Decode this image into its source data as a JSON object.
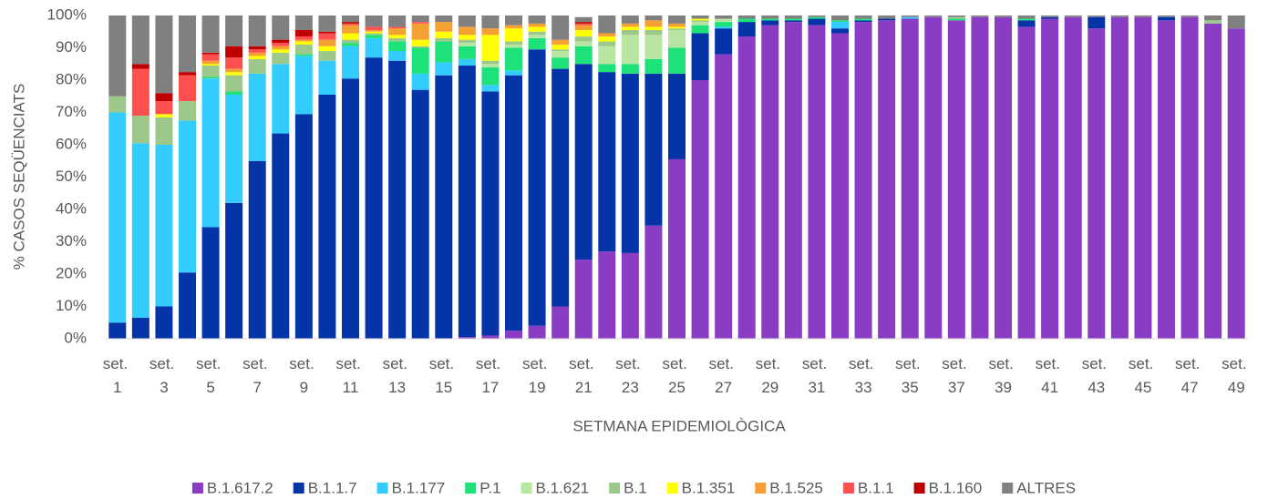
{
  "chart_data": {
    "type": "stacked_bar",
    "x_label": "SETMANA EPIDEMIOLÒGICA",
    "y_label": "% CASOS SEQÜENCIATS",
    "categories": [
      "set. 1",
      null,
      "set. 3",
      null,
      "set. 5",
      null,
      "set. 7",
      null,
      "set. 9",
      null,
      "set. 11",
      null,
      "set. 13",
      null,
      "set. 15",
      null,
      "set. 17",
      null,
      "set. 19",
      null,
      "set. 21",
      null,
      "set. 23",
      null,
      "set. 25",
      null,
      "set. 27",
      null,
      "set. 29",
      null,
      "set. 31",
      null,
      "set. 33",
      null,
      "set. 35",
      null,
      "set. 37",
      null,
      "set. 39",
      null,
      "set. 41",
      null,
      "set. 43",
      null,
      "set. 45",
      null,
      "set. 47",
      null,
      "set. 49"
    ],
    "ylim": [
      0,
      100
    ],
    "yticks": [
      {
        "value": 0,
        "label": "0%"
      },
      {
        "value": 10,
        "label": "10%"
      },
      {
        "value": 20,
        "label": "20%"
      },
      {
        "value": 30,
        "label": "30%"
      },
      {
        "value": 40,
        "label": "40%"
      },
      {
        "value": 50,
        "label": "50%"
      },
      {
        "value": 60,
        "label": "60%"
      },
      {
        "value": 70,
        "label": "70%"
      },
      {
        "value": 80,
        "label": "80%"
      },
      {
        "value": 90,
        "label": "90%"
      },
      {
        "value": 100,
        "label": "100%"
      }
    ],
    "grid": false,
    "legend": "bottom",
    "series": [
      {
        "name": "B.1.617.2",
        "color": "#8a3cc4",
        "values": [
          0,
          0,
          0,
          0,
          0,
          0,
          0,
          0,
          0,
          0,
          0,
          0,
          0,
          0,
          0,
          0.5,
          1,
          2.5,
          4,
          10,
          24.5,
          27,
          26.5,
          35,
          55.5,
          80,
          88,
          93.5,
          97,
          98,
          97,
          94.5,
          98,
          98.5,
          99,
          99.5,
          98.5,
          99.5,
          99.5,
          96.5,
          99,
          99.5,
          96,
          99.5,
          99.5,
          98.5,
          99.5,
          97.5,
          96
        ]
      },
      {
        "name": "B.1.1.7",
        "color": "#0434a8",
        "values": [
          5,
          6.5,
          10,
          20.5,
          34.5,
          42,
          55,
          63.5,
          69.5,
          75.5,
          80.5,
          87,
          86,
          77,
          81.5,
          84,
          75.5,
          79,
          85.5,
          73.5,
          60.5,
          55.5,
          55.5,
          47,
          26.5,
          14.5,
          8,
          4.5,
          1.5,
          0.5,
          2,
          1.5,
          0.5,
          0.5,
          0,
          0,
          0,
          0,
          0,
          2,
          0.5,
          0,
          3.5,
          0,
          0,
          1,
          0,
          0,
          0
        ]
      },
      {
        "name": "B.1.177",
        "color": "#33ccff",
        "values": [
          65,
          54,
          50,
          47,
          46,
          33.5,
          27,
          21.5,
          18,
          10.5,
          10,
          6,
          3,
          5,
          4,
          2,
          2,
          1.5,
          0,
          0,
          0,
          0,
          0,
          0,
          0,
          0,
          0.5,
          0,
          0,
          0,
          0,
          2,
          0,
          0,
          0.5,
          0,
          0,
          0,
          0,
          0,
          0,
          0,
          0,
          0,
          0,
          0,
          0,
          0,
          0
        ]
      },
      {
        "name": "P.1",
        "color": "#1de27a",
        "values": [
          0,
          0,
          0,
          0,
          0.5,
          1,
          0,
          0,
          0.5,
          0,
          1,
          1,
          3,
          8,
          6.5,
          4,
          5.5,
          7,
          3.5,
          3.5,
          5.5,
          2.5,
          3,
          4.5,
          8,
          2.5,
          1.5,
          1,
          0.5,
          0.5,
          0.5,
          0.5,
          0.5,
          0,
          0,
          0,
          0.5,
          0,
          0,
          0.5,
          0,
          0,
          0,
          0,
          0,
          0,
          0,
          0,
          0
        ]
      },
      {
        "name": "B.1.621",
        "color": "#b8e6a2",
        "values": [
          0,
          0,
          0,
          0,
          0,
          0,
          0,
          0,
          0,
          0,
          0,
          0,
          0,
          0,
          0,
          1,
          1,
          1,
          1,
          2,
          1.5,
          5.5,
          9,
          7.5,
          5.5,
          1,
          1,
          0,
          0,
          0,
          0,
          0,
          0,
          0,
          0,
          0,
          0,
          0,
          0,
          0,
          0,
          0,
          0,
          0,
          0,
          0,
          0,
          0,
          0
        ]
      },
      {
        "name": "B.1",
        "color": "#9cc98a",
        "values": [
          5,
          8.5,
          8.5,
          6,
          3.5,
          5,
          4.5,
          3.5,
          3,
          3,
          1,
          0.5,
          1,
          0.5,
          1,
          1,
          1,
          1,
          1,
          0.5,
          1.5,
          1.5,
          1.5,
          1.5,
          0.5,
          0.5,
          0,
          0,
          0,
          0,
          0,
          0,
          0,
          0,
          0,
          0,
          0.5,
          0,
          0,
          0,
          0,
          0,
          0,
          0,
          0,
          0,
          0,
          1,
          0
        ]
      },
      {
        "name": "B.1.351",
        "color": "#ffff00",
        "values": [
          0,
          0,
          1,
          0,
          0.5,
          1,
          1,
          1,
          1,
          1.5,
          2,
          0.5,
          1,
          2,
          2,
          1.5,
          8,
          4,
          1.5,
          1.5,
          2,
          1.5,
          1,
          1,
          0.5,
          0.5,
          0,
          0,
          0,
          0,
          0,
          0,
          0,
          0,
          0,
          0,
          0,
          0,
          0,
          0,
          0,
          0,
          0,
          0,
          0,
          0,
          0,
          0,
          0
        ]
      },
      {
        "name": "B.1.525",
        "color": "#f5a033",
        "values": [
          0,
          0,
          0,
          0,
          1,
          1,
          1,
          1,
          0.5,
          2,
          2.5,
          0.5,
          2,
          5,
          3,
          2.5,
          2,
          1,
          1,
          1.5,
          1.5,
          1,
          1,
          2,
          1,
          0,
          0,
          0,
          0,
          0,
          0,
          0,
          0,
          0,
          0,
          0,
          0,
          0,
          0,
          0,
          0,
          0,
          0,
          0,
          0,
          0,
          0,
          0,
          0
        ]
      },
      {
        "name": "B.1.1",
        "color": "#ff5050",
        "values": [
          0,
          14.5,
          4,
          8,
          2,
          3.5,
          1,
          1,
          1,
          2,
          0.5,
          1,
          0.5,
          0.5,
          0,
          0,
          0,
          0,
          0,
          0,
          0.5,
          0,
          0,
          0,
          0,
          0,
          0,
          0,
          0,
          0,
          0,
          0,
          0,
          0,
          0,
          0,
          0,
          0,
          0,
          0,
          0,
          0,
          0,
          0,
          0,
          0,
          0,
          0,
          0
        ]
      },
      {
        "name": "B.1.160",
        "color": "#c00000",
        "values": [
          0,
          1.5,
          2.5,
          1,
          0.5,
          3.5,
          1,
          1,
          2,
          0.5,
          0.5,
          0,
          0,
          0,
          0,
          0,
          0,
          0,
          0,
          0,
          0.5,
          0,
          0,
          0,
          0,
          0,
          0,
          0,
          0,
          0,
          0,
          0,
          0,
          0,
          0,
          0,
          0,
          0,
          0,
          0,
          0,
          0,
          0,
          0,
          0,
          0,
          0,
          0,
          0
        ]
      },
      {
        "name": "ALTRES",
        "color": "#808080",
        "values": [
          25,
          15,
          24,
          17.5,
          11.5,
          9.5,
          9.5,
          7.5,
          4.5,
          5,
          2,
          3.5,
          3.5,
          2,
          2,
          3.5,
          4,
          3,
          2.5,
          7.5,
          1.5,
          5.5,
          2.5,
          1.5,
          2.5,
          1,
          1,
          1,
          1,
          1,
          0.5,
          1.5,
          1,
          1,
          0.5,
          0.5,
          0.5,
          0.5,
          0.5,
          1,
          0.5,
          0.5,
          0.5,
          0.5,
          0.5,
          0.5,
          0.5,
          1.5,
          4
        ]
      }
    ]
  }
}
